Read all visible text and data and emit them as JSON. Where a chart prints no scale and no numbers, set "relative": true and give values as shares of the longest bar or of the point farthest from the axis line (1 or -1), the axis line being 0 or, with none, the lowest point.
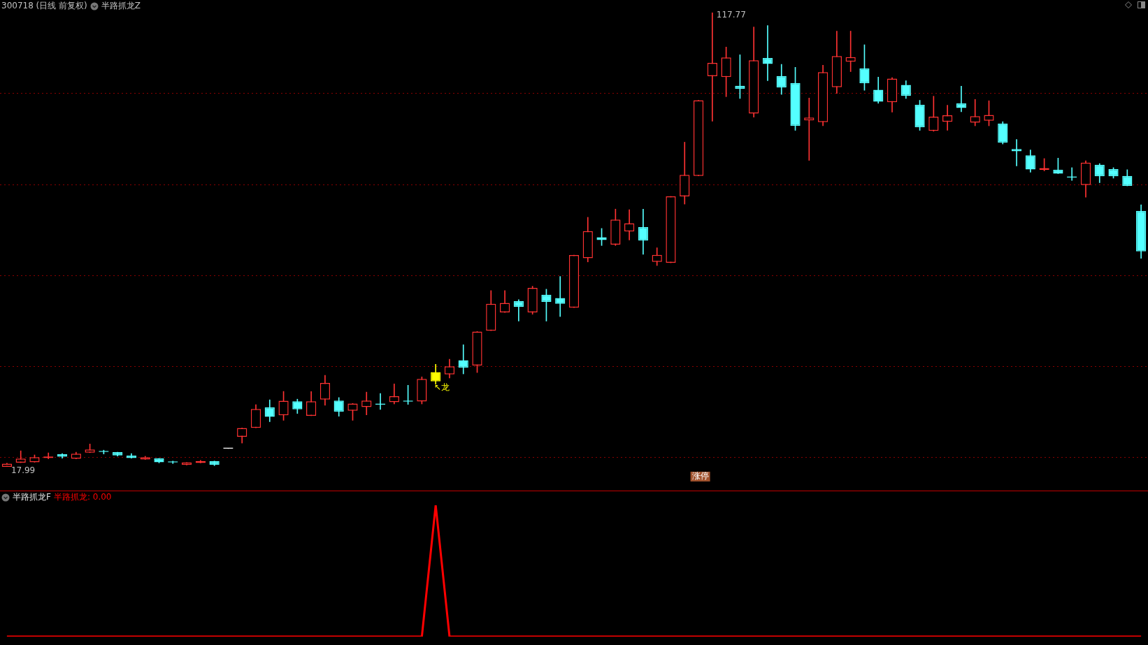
{
  "chart_data": [
    {
      "type": "candlestick",
      "title": "300718 (日线 前复权)",
      "subtitle": "半路抓龙Z",
      "grid": "y",
      "categories": [
        null,
        null,
        null,
        null,
        null,
        null,
        null,
        null,
        null,
        null,
        null,
        null,
        null,
        null,
        null,
        null,
        null,
        null,
        null,
        null,
        null,
        null,
        null,
        null,
        null,
        null,
        null,
        null,
        null,
        null,
        null,
        null,
        null,
        null,
        null,
        null,
        null,
        null,
        null,
        null,
        null,
        null,
        null,
        null,
        null,
        null,
        null,
        null,
        null,
        null,
        null,
        null,
        null,
        null,
        null,
        null,
        null,
        null,
        null,
        null,
        null,
        null,
        null,
        null,
        null,
        null,
        null,
        null,
        null,
        null,
        null,
        null,
        null,
        null,
        null,
        null,
        null,
        null,
        null,
        null,
        null,
        null,
        null
      ],
      "yticks": [
        {
          "value": 20,
          "label": null
        },
        {
          "value": 40,
          "label": null
        },
        {
          "value": 60,
          "label": null
        },
        {
          "value": 80,
          "label": null
        },
        {
          "value": 100,
          "label": null
        }
      ],
      "ohlc": [
        [
          18.0,
          18.8,
          17.99,
          18.7
        ],
        [
          18.9,
          21.5,
          18.9,
          19.8
        ],
        [
          19.0,
          20.6,
          19.0,
          20.1
        ],
        [
          19.9,
          21.05,
          19.75,
          20.25
        ],
        [
          20.75,
          20.9,
          19.9,
          20.2
        ],
        [
          19.75,
          21.2,
          19.75,
          20.85
        ],
        [
          21.1,
          23.0,
          21.1,
          21.8
        ],
        [
          21.5,
          21.65,
          20.8,
          21.25
        ],
        [
          21.2,
          21.2,
          20.35,
          20.5
        ],
        [
          20.45,
          20.9,
          19.9,
          19.9
        ],
        [
          19.6,
          20.3,
          19.6,
          20.1
        ],
        [
          19.85,
          19.85,
          18.85,
          19.0
        ],
        [
          19.0,
          19.25,
          18.7,
          18.95
        ],
        [
          18.4,
          18.95,
          18.4,
          18.95
        ],
        [
          18.85,
          19.4,
          18.85,
          19.25
        ],
        [
          19.25,
          19.25,
          18.25,
          18.4
        ],
        [
          22.0,
          22.0,
          22.0,
          22.0
        ],
        [
          24.6,
          26.5,
          23.2,
          26.5
        ],
        [
          26.55,
          31.65,
          26.55,
          30.7
        ],
        [
          31.05,
          32.7,
          27.9,
          28.95
        ],
        [
          29.3,
          34.55,
          28.2,
          32.5
        ],
        [
          32.4,
          32.85,
          29.7,
          30.6
        ],
        [
          29.2,
          34.5,
          29.2,
          32.4
        ],
        [
          32.75,
          38.1,
          31.5,
          36.4
        ],
        [
          32.55,
          33.2,
          29.1,
          30.1
        ],
        [
          30.3,
          31.9,
          28.2,
          31.9
        ],
        [
          31.1,
          34.4,
          29.4,
          32.55
        ],
        [
          31.75,
          34.1,
          30.6,
          31.65
        ],
        [
          32.2,
          36.2,
          31.8,
          33.5
        ],
        [
          32.4,
          35.9,
          31.7,
          32.3
        ],
        [
          32.35,
          37.75,
          31.8,
          37.3
        ],
        [
          38.8,
          40.5,
          36.1,
          36.75
        ],
        [
          38.3,
          41.6,
          37.5,
          40.05
        ],
        [
          41.4,
          44.8,
          38.4,
          39.8
        ],
        [
          40.25,
          47.7,
          38.7,
          47.7
        ],
        [
          47.9,
          56.7,
          47.9,
          53.8
        ],
        [
          51.9,
          56.7,
          51.9,
          54.0
        ],
        [
          54.4,
          54.7,
          50.0,
          53.1
        ],
        [
          51.9,
          57.65,
          51.5,
          57.3
        ],
        [
          55.8,
          57.0,
          50.0,
          54.2
        ],
        [
          55.05,
          59.8,
          51.0,
          53.8
        ],
        [
          52.95,
          64.5,
          52.95,
          64.5
        ],
        [
          63.8,
          72.8,
          63.0,
          69.75
        ],
        [
          68.4,
          70.35,
          66.6,
          67.8
        ],
        [
          66.8,
          74.6,
          66.6,
          72.3
        ],
        [
          69.7,
          74.45,
          67.8,
          71.5
        ],
        [
          70.65,
          74.6,
          64.65,
          67.7
        ],
        [
          63.0,
          66.1,
          62.2,
          64.55
        ],
        [
          62.8,
          77.4,
          62.8,
          77.4
        ],
        [
          77.4,
          89.3,
          75.7,
          82.1
        ],
        [
          81.9,
          98.5,
          81.9,
          98.5
        ],
        [
          103.8,
          117.77,
          93.9,
          106.7
        ],
        [
          103.6,
          110.2,
          99.3,
          107.9
        ],
        [
          101.7,
          108.5,
          98.9,
          101.0
        ],
        [
          95.6,
          114.6,
          94.8,
          107.3
        ],
        [
          107.8,
          114.9,
          102.8,
          106.5
        ],
        [
          103.85,
          106.4,
          99.8,
          101.3
        ],
        [
          102.3,
          105.75,
          91.9,
          92.9
        ],
        [
          94.1,
          99.0,
          85.3,
          94.7
        ],
        [
          93.7,
          106.2,
          92.9,
          104.7
        ],
        [
          101.4,
          113.7,
          100.0,
          108.2
        ],
        [
          107.0,
          113.7,
          104.8,
          108.0
        ],
        [
          105.5,
          110.7,
          100.7,
          102.25
        ],
        [
          100.8,
          103.6,
          97.85,
          98.2
        ],
        [
          98.1,
          103.5,
          95.9,
          103.25
        ],
        [
          101.9,
          102.8,
          98.9,
          99.5
        ],
        [
          97.5,
          98.5,
          91.9,
          92.6
        ],
        [
          91.8,
          99.4,
          91.7,
          94.9
        ],
        [
          93.8,
          97.4,
          91.9,
          95.2
        ],
        [
          97.8,
          101.6,
          96.0,
          96.8
        ],
        [
          93.6,
          98.7,
          92.9,
          95.0
        ],
        [
          94.0,
          98.4,
          92.9,
          95.3
        ],
        [
          93.4,
          93.8,
          88.9,
          89.2
        ],
        [
          87.8,
          89.9,
          84.1,
          87.3
        ],
        [
          86.4,
          87.6,
          82.7,
          83.3
        ],
        [
          83.2,
          85.7,
          83.0,
          83.6
        ],
        [
          83.25,
          85.8,
          82.4,
          82.4
        ],
        [
          81.6,
          83.7,
          80.9,
          81.55
        ],
        [
          79.9,
          85.2,
          77.2,
          84.8
        ],
        [
          84.35,
          84.6,
          80.4,
          81.8
        ],
        [
          83.4,
          83.7,
          81.4,
          81.8
        ],
        [
          81.9,
          83.25,
          79.7,
          79.7
        ],
        [
          74.2,
          75.55,
          63.8,
          65.3
        ]
      ],
      "colors": [
        "#ff3232",
        "#ff3232",
        "#ff3232",
        "#ff3232",
        "#54ffff",
        "#ff3232",
        "#ff3232",
        "#54ffff",
        "#54ffff",
        "#54ffff",
        "#ff3232",
        "#54ffff",
        "#54ffff",
        "#ff3232",
        "#ff3232",
        "#54ffff",
        "#ffffff",
        "#ff3232",
        "#ff3232",
        "#54ffff",
        "#ff3232",
        "#54ffff",
        "#ff3232",
        "#ff3232",
        "#54ffff",
        "#ff3232",
        "#ff3232",
        "#54ffff",
        "#ff3232",
        "#54ffff",
        "#ff3232",
        "#ffff00",
        "#ff3232",
        "#54ffff",
        "#ff3232",
        "#ff3232",
        "#ff3232",
        "#54ffff",
        "#ff3232",
        "#54ffff",
        "#54ffff",
        "#ff3232",
        "#ff3232",
        "#54ffff",
        "#ff3232",
        "#ff3232",
        "#54ffff",
        "#ff3232",
        "#ff3232",
        "#ff3232",
        "#ff3232",
        "#ff3232",
        "#ff3232",
        "#54ffff",
        "#ff3232",
        "#54ffff",
        "#54ffff",
        "#54ffff",
        "#ff3232",
        "#ff3232",
        "#ff3232",
        "#ff3232",
        "#54ffff",
        "#54ffff",
        "#ff3232",
        "#54ffff",
        "#54ffff",
        "#ff3232",
        "#ff3232",
        "#54ffff",
        "#ff3232",
        "#ff3232",
        "#54ffff",
        "#54ffff",
        "#54ffff",
        "#ff3232",
        "#54ffff",
        "#54ffff",
        "#ff3232",
        "#54ffff",
        "#54ffff",
        "#54ffff",
        "#54ffff"
      ],
      "annotations": [
        "117.77",
        "17.99",
        "↖龙",
        "涨停"
      ]
    },
    {
      "type": "line",
      "title": "半路抓龙F",
      "relative": true,
      "categories": [
        null,
        null,
        null,
        null,
        null,
        null,
        null,
        null,
        null,
        null,
        null,
        null,
        null,
        null,
        null,
        null,
        null,
        null,
        null,
        null,
        null,
        null,
        null,
        null,
        null,
        null,
        null,
        null,
        null,
        null,
        null,
        null,
        null,
        null,
        null,
        null,
        null,
        null,
        null,
        null,
        null,
        null,
        null,
        null,
        null,
        null,
        null,
        null,
        null,
        null,
        null,
        null,
        null,
        null,
        null,
        null,
        null,
        null,
        null,
        null,
        null,
        null,
        null,
        null,
        null,
        null,
        null,
        null,
        null,
        null,
        null,
        null,
        null,
        null,
        null,
        null,
        null,
        null,
        null,
        null,
        null,
        null,
        null
      ],
      "series": [
        {
          "color": "#ff0000",
          "values": [
            0,
            0,
            0,
            0,
            0,
            0,
            0,
            0,
            0,
            0,
            0,
            0,
            0,
            0,
            0,
            0,
            0,
            0,
            0,
            0,
            0,
            0,
            0,
            0,
            0,
            0,
            0,
            0,
            0,
            0,
            0,
            1,
            0,
            0,
            0,
            0,
            0,
            0,
            0,
            0,
            0,
            0,
            0,
            0,
            0,
            0,
            0,
            0,
            0,
            0,
            0,
            0,
            0,
            0,
            0,
            0,
            0,
            0,
            0,
            0,
            0,
            0,
            0,
            0,
            0,
            0,
            0,
            0,
            0,
            0,
            0,
            0,
            0,
            0,
            0,
            0,
            0,
            0,
            0,
            0,
            0,
            0,
            0
          ]
        }
      ],
      "annotations": [
        "半路抓龙: 0.00"
      ]
    }
  ]
}
